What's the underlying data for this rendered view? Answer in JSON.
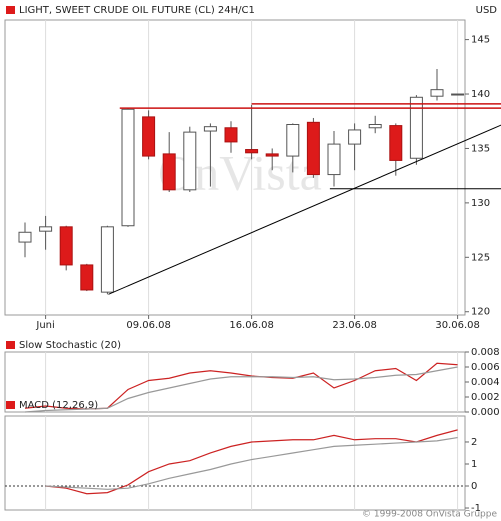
{
  "charts": [
    {
      "type": "candlestick",
      "title": "LIGHT, SWEET CRUDE OIL FUTURE (CL) 24H/C1",
      "currency": "USD",
      "watermark": "OnVista",
      "categories": [
        null,
        "Juni",
        null,
        null,
        null,
        null,
        "09.06.08",
        null,
        null,
        null,
        null,
        "16.06.08",
        null,
        null,
        null,
        null,
        "23.06.08",
        null,
        null,
        null,
        null,
        "30.06.08"
      ],
      "open": [
        126.4,
        127.4,
        127.8,
        124.3,
        121.8,
        127.9,
        137.9,
        134.5,
        131.2,
        136.6,
        136.9,
        134.9,
        134.5,
        134.3,
        137.4,
        132.6,
        135.4,
        136.9,
        137.1,
        134.1,
        139.8,
        140.0
      ],
      "high": [
        128.2,
        128.8,
        127.9,
        124.4,
        127.9,
        138.7,
        138.5,
        136.5,
        137.0,
        137.3,
        137.5,
        139.0,
        135.0,
        137.3,
        137.8,
        136.6,
        137.3,
        138.0,
        137.3,
        139.9,
        142.3,
        140.0
      ],
      "low": [
        125.0,
        125.7,
        123.8,
        121.9,
        121.6,
        127.8,
        134.0,
        131.0,
        131.0,
        131.5,
        134.6,
        134.0,
        133.0,
        132.8,
        132.3,
        131.5,
        133.0,
        136.4,
        132.5,
        133.5,
        139.4,
        140.0
      ],
      "close": [
        127.3,
        127.8,
        124.3,
        122.0,
        127.8,
        138.6,
        134.3,
        131.2,
        136.5,
        137.0,
        135.6,
        134.6,
        134.3,
        137.2,
        132.6,
        135.4,
        136.7,
        137.2,
        133.9,
        139.7,
        140.4,
        140.0
      ],
      "up_color": "#ffffff",
      "down_color": "#dd1a1a",
      "lines": [
        {
          "x": [
            4.6,
            23.3
          ],
          "values": [
            138.7,
            138.7
          ],
          "color": "#cc1111"
        },
        {
          "x": [
            11.0,
            23.3
          ],
          "values": [
            139.1,
            139.1
          ],
          "color": "#cc1111"
        },
        {
          "x": [
            4.05,
            23.3
          ],
          "values": [
            121.6,
            137.3
          ],
          "color": "#000000"
        },
        {
          "x": [
            14.8,
            23.3
          ],
          "values": [
            131.3,
            131.3
          ],
          "color": "#000000"
        }
      ],
      "ylim": [
        119.7,
        146.8
      ],
      "yticks": [
        120,
        125,
        130,
        135,
        140,
        145
      ],
      "grid": "x"
    },
    {
      "type": "line",
      "title": "Slow Stochastic (20)",
      "series": [
        {
          "color": "#cc2222",
          "values": [
            0.0005,
            0.0008,
            0.0005,
            0.0004,
            0.0005,
            0.003,
            0.0042,
            0.0045,
            0.0052,
            0.0055,
            0.0052,
            0.0048,
            0.0046,
            0.0045,
            0.0052,
            0.0032,
            0.0042,
            0.0055,
            0.0058,
            0.0042,
            0.0065,
            0.0063
          ]
        },
        {
          "color": "#999999",
          "values": [
            0.0,
            0.0002,
            0.0003,
            0.0004,
            0.0005,
            0.0018,
            0.0026,
            0.0032,
            0.0038,
            0.0044,
            0.0047,
            0.0047,
            0.0047,
            0.0046,
            0.0047,
            0.0043,
            0.0044,
            0.0046,
            0.0049,
            0.005,
            0.0055,
            0.006
          ]
        }
      ],
      "ylim": [
        0,
        0.008
      ],
      "yticks": [
        {
          "value": 0,
          "label": "0.000"
        },
        0.002,
        0.004,
        0.006,
        0.008
      ],
      "grid": "x"
    },
    {
      "type": "line",
      "title": "MACD (12,26,9)",
      "series": [
        {
          "color": "#cc2222",
          "values": [
            null,
            0,
            -0.1,
            -0.35,
            -0.3,
            0.05,
            0.65,
            1.0,
            1.15,
            1.5,
            1.8,
            2.0,
            2.05,
            2.1,
            2.1,
            2.3,
            2.1,
            2.15,
            2.15,
            2.0,
            2.3,
            2.55
          ]
        },
        {
          "color": "#999999",
          "values": [
            null,
            0,
            -0.05,
            -0.1,
            -0.15,
            -0.1,
            0.1,
            0.35,
            0.55,
            0.75,
            1.0,
            1.2,
            1.35,
            1.5,
            1.65,
            1.8,
            1.85,
            1.9,
            1.95,
            2.0,
            2.05,
            2.2
          ]
        }
      ],
      "ylim": [
        -1.09,
        3.18
      ],
      "yticks": [
        -1,
        0,
        1,
        2
      ],
      "zero_line": true,
      "grid": "x"
    }
  ],
  "footer": "© 1999-2008 OnVista Gruppe"
}
